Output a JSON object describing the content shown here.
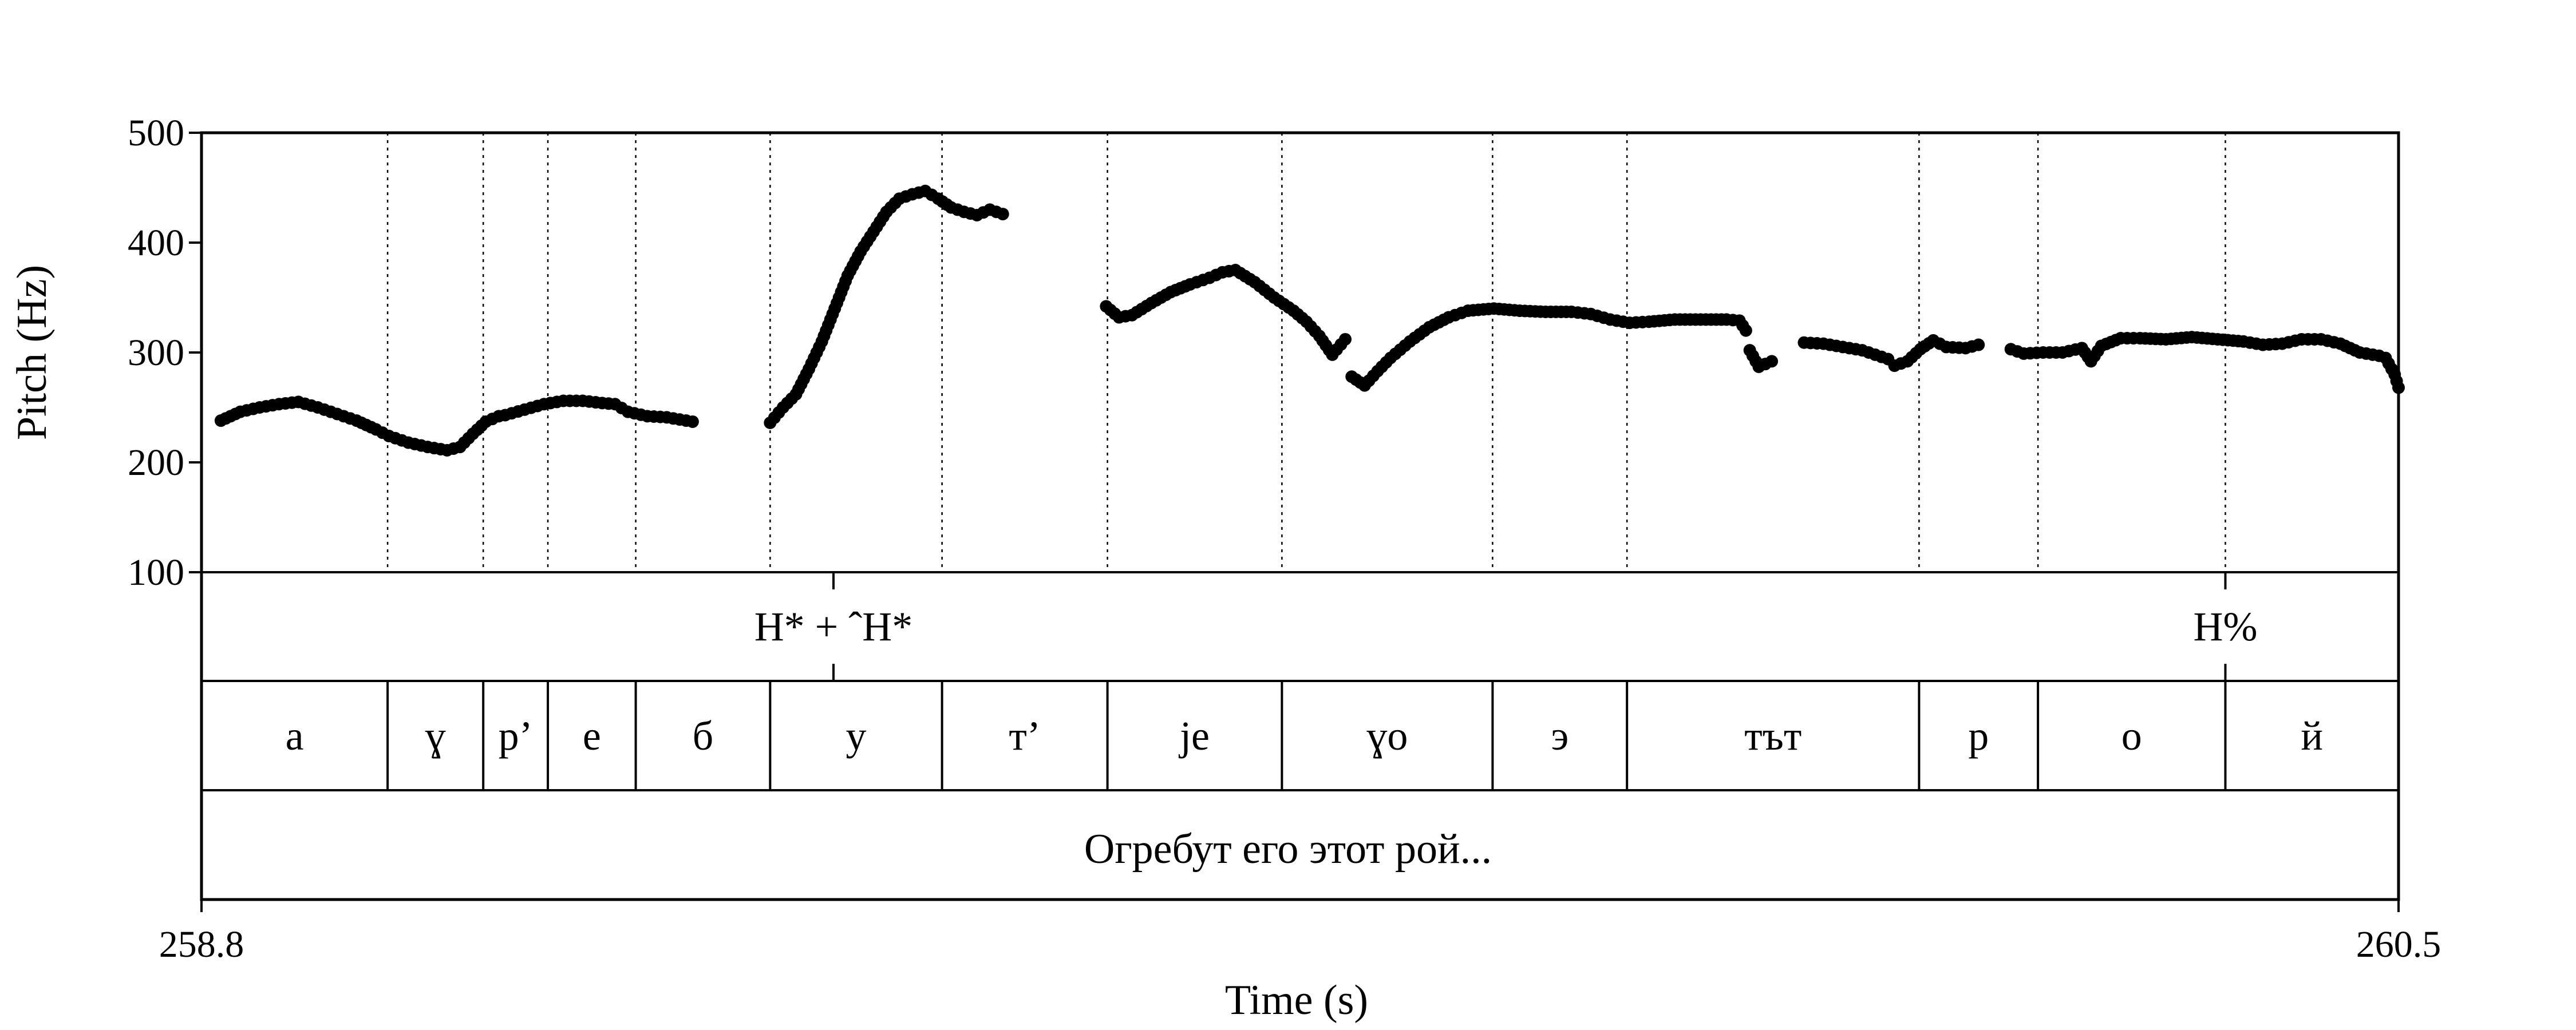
{
  "chart_data": {
    "type": "scatter",
    "xlabel": "Time (s)",
    "ylabel": "Pitch (Hz)",
    "xlim": [
      258.8,
      260.5
    ],
    "ylim": [
      100,
      500
    ],
    "x_tick_labels": [
      "258.8",
      "260.5"
    ],
    "y_tick_labels": [
      "500",
      "400",
      "300",
      "200",
      "100"
    ],
    "y_ticks": [
      500,
      400,
      300,
      200,
      100
    ],
    "marker_color": "#000000",
    "segments": [
      {
        "label": "a",
        "start": 258.8,
        "end": 258.944
      },
      {
        "label": "ɣ",
        "start": 258.944,
        "end": 259.018
      },
      {
        "label": "p’",
        "start": 259.018,
        "end": 259.068
      },
      {
        "label": "e",
        "start": 259.068,
        "end": 259.136
      },
      {
        "label": "б",
        "start": 259.136,
        "end": 259.24
      },
      {
        "label": "y",
        "start": 259.24,
        "end": 259.373
      },
      {
        "label": "т’",
        "start": 259.373,
        "end": 259.501
      },
      {
        "label": "je",
        "start": 259.501,
        "end": 259.636
      },
      {
        "label": "ɣo",
        "start": 259.636,
        "end": 259.799
      },
      {
        "label": "э",
        "start": 259.799,
        "end": 259.903
      },
      {
        "label": "тът",
        "start": 259.903,
        "end": 260.129
      },
      {
        "label": "p",
        "start": 260.129,
        "end": 260.221
      },
      {
        "label": "o",
        "start": 260.221,
        "end": 260.366
      },
      {
        "label": "й",
        "start": 260.366,
        "end": 260.5
      }
    ],
    "tones": [
      {
        "label": "H* + ˆH*",
        "time": 259.289
      },
      {
        "label": "H%",
        "time": 260.366
      }
    ],
    "sentence": "Огребут его этот рой...",
    "pitch_contours": [
      [
        [
          258.815,
          238
        ],
        [
          258.83,
          246
        ],
        [
          258.845,
          250
        ],
        [
          258.86,
          253
        ],
        [
          258.875,
          255
        ],
        [
          258.89,
          250
        ],
        [
          258.905,
          244
        ],
        [
          258.92,
          238
        ],
        [
          258.935,
          230
        ],
        [
          258.945,
          224
        ],
        [
          258.96,
          218
        ],
        [
          258.975,
          214
        ],
        [
          258.99,
          211
        ],
        [
          259.0,
          214
        ],
        [
          259.01,
          226
        ],
        [
          259.02,
          237
        ],
        [
          259.03,
          242
        ]
      ],
      [
        [
          259.035,
          243
        ],
        [
          259.05,
          248
        ],
        [
          259.065,
          253
        ],
        [
          259.08,
          256
        ],
        [
          259.095,
          256
        ],
        [
          259.11,
          254
        ],
        [
          259.12,
          253
        ],
        [
          259.13,
          246
        ],
        [
          259.145,
          242
        ],
        [
          259.16,
          241
        ],
        [
          259.17,
          239
        ],
        [
          259.18,
          237
        ]
      ],
      [
        [
          259.24,
          236
        ],
        [
          259.25,
          250
        ],
        [
          259.26,
          262
        ],
        [
          259.27,
          285
        ],
        [
          259.28,
          310
        ],
        [
          259.29,
          340
        ],
        [
          259.3,
          370
        ],
        [
          259.31,
          392
        ],
        [
          259.32,
          410
        ],
        [
          259.33,
          428
        ],
        [
          259.34,
          440
        ],
        [
          259.35,
          444
        ],
        [
          259.36,
          447
        ],
        [
          259.37,
          440
        ],
        [
          259.38,
          432
        ],
        [
          259.39,
          428
        ],
        [
          259.4,
          425
        ],
        [
          259.41,
          430
        ],
        [
          259.42,
          426
        ]
      ],
      [
        [
          259.5,
          342
        ],
        [
          259.51,
          332
        ],
        [
          259.52,
          334
        ],
        [
          259.535,
          345
        ],
        [
          259.55,
          355
        ],
        [
          259.565,
          362
        ],
        [
          259.58,
          368
        ],
        [
          259.59,
          373
        ],
        [
          259.6,
          375
        ],
        [
          259.615,
          364
        ],
        [
          259.63,
          350
        ],
        [
          259.645,
          338
        ],
        [
          259.655,
          328
        ],
        [
          259.665,
          315
        ],
        [
          259.675,
          298
        ],
        [
          259.685,
          312
        ]
      ],
      [
        [
          259.69,
          278
        ],
        [
          259.7,
          270
        ],
        [
          259.71,
          283
        ],
        [
          259.72,
          295
        ],
        [
          259.735,
          310
        ],
        [
          259.75,
          323
        ],
        [
          259.765,
          332
        ],
        [
          259.78,
          338
        ],
        [
          259.8,
          340
        ],
        [
          259.82,
          338
        ],
        [
          259.84,
          337
        ],
        [
          259.86,
          337
        ],
        [
          259.875,
          335
        ],
        [
          259.89,
          330
        ],
        [
          259.905,
          327
        ],
        [
          259.92,
          328
        ],
        [
          259.94,
          330
        ],
        [
          259.96,
          330
        ],
        [
          259.98,
          330
        ],
        [
          259.99,
          329
        ],
        [
          259.995,
          320
        ]
      ],
      [
        [
          259.998,
          302
        ],
        [
          260.005,
          287
        ],
        [
          260.015,
          292
        ]
      ],
      [
        [
          260.04,
          309
        ],
        [
          260.055,
          308
        ],
        [
          260.07,
          305
        ],
        [
          260.085,
          302
        ],
        [
          260.095,
          298
        ],
        [
          260.105,
          294
        ],
        [
          260.11,
          288
        ],
        [
          260.12,
          292
        ],
        [
          260.13,
          303
        ],
        [
          260.14,
          311
        ],
        [
          260.15,
          305
        ],
        [
          260.165,
          304
        ],
        [
          260.175,
          307
        ]
      ],
      [
        [
          260.2,
          303
        ],
        [
          260.21,
          299
        ],
        [
          260.225,
          300
        ],
        [
          260.24,
          300
        ],
        [
          260.255,
          304
        ],
        [
          260.262,
          292
        ],
        [
          260.27,
          306
        ],
        [
          260.285,
          313
        ],
        [
          260.3,
          313
        ],
        [
          260.32,
          312
        ],
        [
          260.34,
          314
        ],
        [
          260.36,
          312
        ],
        [
          260.38,
          310
        ],
        [
          260.395,
          307
        ],
        [
          260.41,
          308
        ],
        [
          260.425,
          312
        ],
        [
          260.44,
          312
        ],
        [
          260.455,
          308
        ],
        [
          260.47,
          300
        ],
        [
          260.485,
          297
        ],
        [
          260.49,
          295
        ],
        [
          260.497,
          280
        ],
        [
          260.5,
          268
        ]
      ]
    ]
  }
}
